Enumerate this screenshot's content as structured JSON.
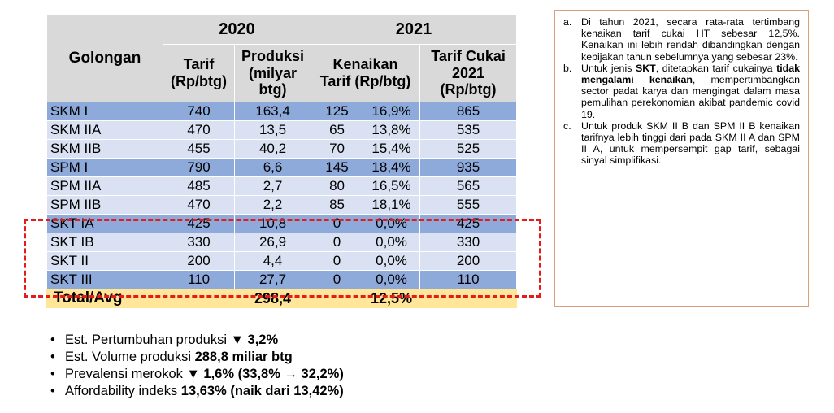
{
  "table": {
    "head": {
      "golongan": "Golongan",
      "year1": "2020",
      "year2": "2021",
      "tarif": "Tarif (Rp/btg)",
      "produksi": "Produksi (milyar btg)",
      "kenaikan": "Kenaikan Tarif (Rp/btg)",
      "tarif_cukai": "Tarif Cukai 2021 (Rp/btg)"
    },
    "rows": [
      {
        "gol": "SKM I",
        "tarif": "740",
        "prod": "163,4",
        "naik": "125",
        "pct": "16,9%",
        "t2021": "865"
      },
      {
        "gol": "SKM IIA",
        "tarif": "470",
        "prod": "13,5",
        "naik": "65",
        "pct": "13,8%",
        "t2021": "535"
      },
      {
        "gol": "SKM IIB",
        "tarif": "455",
        "prod": "40,2",
        "naik": "70",
        "pct": "15,4%",
        "t2021": "525"
      },
      {
        "gol": "SPM I",
        "tarif": "790",
        "prod": "6,6",
        "naik": "145",
        "pct": "18,4%",
        "t2021": "935"
      },
      {
        "gol": "SPM IIA",
        "tarif": "485",
        "prod": "2,7",
        "naik": "80",
        "pct": "16,5%",
        "t2021": "565"
      },
      {
        "gol": "SPM IIB",
        "tarif": "470",
        "prod": "2,2",
        "naik": "85",
        "pct": "18,1%",
        "t2021": "555"
      },
      {
        "gol": "SKT IA",
        "tarif": "425",
        "prod": "10,8",
        "naik": "0",
        "pct": "0,0%",
        "t2021": "425"
      },
      {
        "gol": "SKT IB",
        "tarif": "330",
        "prod": "26,9",
        "naik": "0",
        "pct": "0,0%",
        "t2021": "330"
      },
      {
        "gol": "SKT II",
        "tarif": "200",
        "prod": "4,4",
        "naik": "0",
        "pct": "0,0%",
        "t2021": "200"
      },
      {
        "gol": "SKT III",
        "tarif": "110",
        "prod": "27,7",
        "naik": "0",
        "pct": "0,0%",
        "t2021": "110"
      }
    ],
    "total": {
      "label": "Total/Avg",
      "prod": "298,4",
      "pct": "12,5%"
    }
  },
  "bullets": {
    "b1": {
      "text": "Est. Pertumbuhan produksi ",
      "bold": "▼ 3,2%"
    },
    "b2": {
      "text": "Est. Volume produksi ",
      "bold": "288,8 miliar btg"
    },
    "b3": {
      "text": "Prevalensi merokok ",
      "bold": "▼ 1,6% (33,8% → 32,2%)"
    },
    "b4": {
      "text": "Affordability indeks ",
      "bold": "13,63% (naik dari 13,42%)"
    }
  },
  "notes": {
    "a": {
      "marker": "a.",
      "text": "Di tahun 2021, secara rata-rata tertimbang kenaikan tarif cukai HT sebesar 12,5%. Kenaikan ini lebih rendah dibandingkan dengan kebijakan tahun sebelumnya yang sebesar 23%."
    },
    "b": {
      "marker": "b.",
      "t1": "Untuk jenis ",
      "skt": "SKT",
      "t2": ", ditetapkan tarif cukainya ",
      "bold": "tidak mengalami kenaikan",
      "t3": ", mempertimbangkan sector padat karya dan mengingat dalam masa pemulihan perekonomian akibat pandemic covid 19."
    },
    "c": {
      "marker": "c.",
      "text": "Untuk produk SKM II B dan SPM II B kenaikan tarifnya lebih tinggi dari pada SKM II A dan SPM II A, untuk mempersempit gap tarif, sebagai sinyal simplifikasi."
    }
  },
  "colors": {
    "header": "#d9d9d9",
    "row_dark": "#8eaadb",
    "row_light": "#d9e1f2",
    "total": "#ffe699",
    "dash": "#e51b1b",
    "notes_border": "#d9a07a"
  }
}
